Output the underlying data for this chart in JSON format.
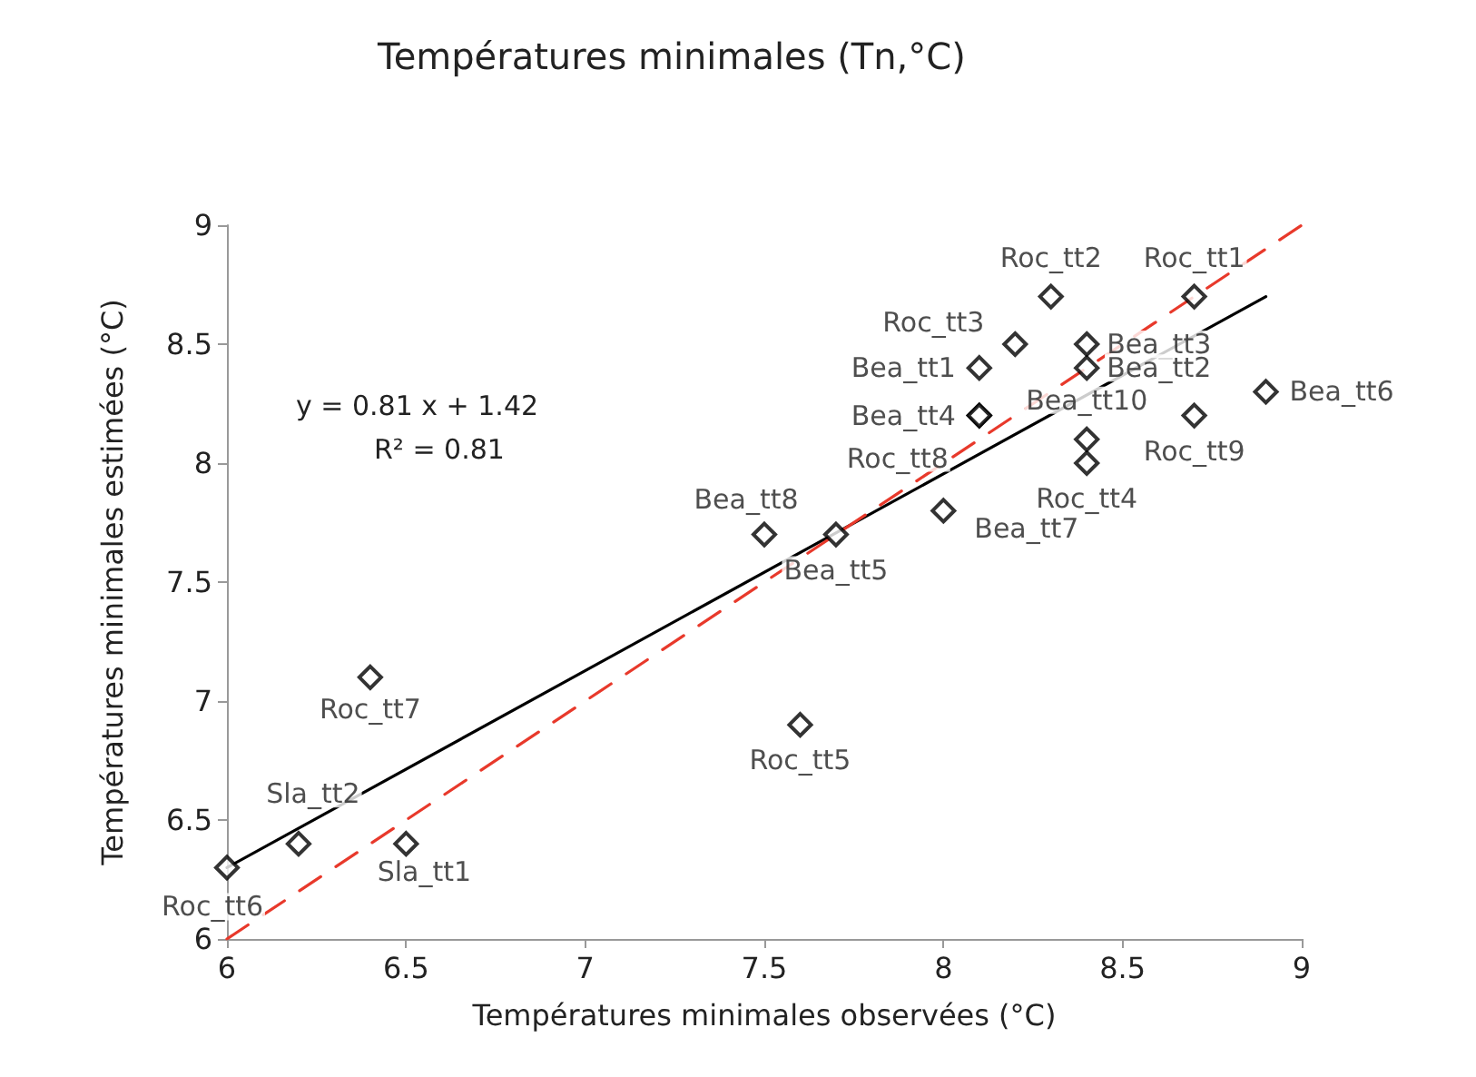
{
  "chart_data": {
    "type": "scatter",
    "title": "Températures minimales (Tn,°C)",
    "xlabel": "Températures minimales observées (°C)",
    "ylabel": "Températures minimales estimées (°C)",
    "xlim": [
      6,
      9
    ],
    "xticks": [
      6,
      6.5,
      7,
      7.5,
      8,
      8.5,
      9
    ],
    "ylim": [
      6,
      9
    ],
    "yticks": [
      6,
      6.5,
      7,
      7.5,
      8,
      8.5,
      9
    ],
    "grid": false,
    "annotations": [
      "y = 0.81 x + 1.42",
      "R² = 0.81"
    ],
    "series": [
      {
        "color": "#000000",
        "marker": "diamond",
        "x": [
          6,
          6.2,
          6.5,
          6.4,
          7.6,
          7.5,
          7.7,
          8.0,
          8.1,
          8.1,
          8.1,
          8.2,
          8.3,
          8.7,
          8.4,
          8.4,
          8.4,
          8.4,
          8.7,
          8.9
        ],
        "values": [
          6.3,
          6.4,
          6.4,
          7.1,
          6.9,
          7.7,
          7.7,
          7.8,
          8.2,
          8.2,
          8.4,
          8.5,
          8.7,
          8.7,
          8.5,
          8.4,
          8.1,
          8.0,
          8.2,
          8.3
        ],
        "value_labels": [
          "Roc_tt6",
          "Sla_tt2",
          "Sla_tt1",
          "Roc_tt7",
          "Roc_tt5",
          "Bea_tt8",
          "Bea_tt5",
          "Bea_tt7",
          "Bea_tt4",
          "Roc_tt8",
          "Bea_tt1",
          "Roc_tt3",
          "Roc_tt2",
          "Roc_tt1",
          "Bea_tt3",
          "Bea_tt2",
          "Bea_tt10",
          "Roc_tt4",
          "Roc_tt9",
          "Bea_tt6"
        ]
      },
      {
        "type": "line",
        "color": "#000000",
        "line_style": "solid",
        "marker": "none",
        "x": [
          6,
          8.9
        ],
        "values": [
          6.3,
          8.7
        ]
      },
      {
        "type": "line",
        "color": "#e8392b",
        "line_style": "dashed",
        "marker": "none",
        "x": [
          6,
          9
        ],
        "values": [
          6,
          9
        ]
      }
    ]
  }
}
